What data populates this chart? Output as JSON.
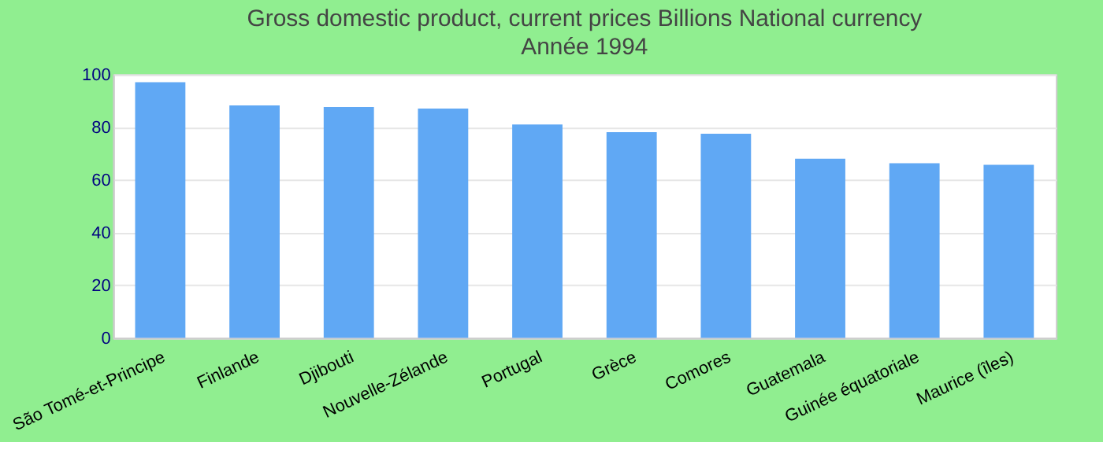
{
  "chart_data": {
    "type": "bar",
    "title": "Gross domestic product, current prices Billions National currency",
    "subtitle": "Année 1994",
    "categories": [
      "São Tomé-et-Principe",
      "Finlande",
      "Djibouti",
      "Nouvelle-Zélande",
      "Portugal",
      "Grèce",
      "Comores",
      "Guatemala",
      "Guinée équatoriale",
      "Maurice (îles)"
    ],
    "values": [
      97,
      88.2,
      87.6,
      87,
      81,
      78.1,
      77.5,
      68,
      66.3,
      65.7
    ],
    "color": "#60a8f4",
    "ylim": [
      0,
      100
    ],
    "yticks": [
      0,
      20,
      40,
      60,
      80,
      100
    ],
    "grid": "y"
  }
}
